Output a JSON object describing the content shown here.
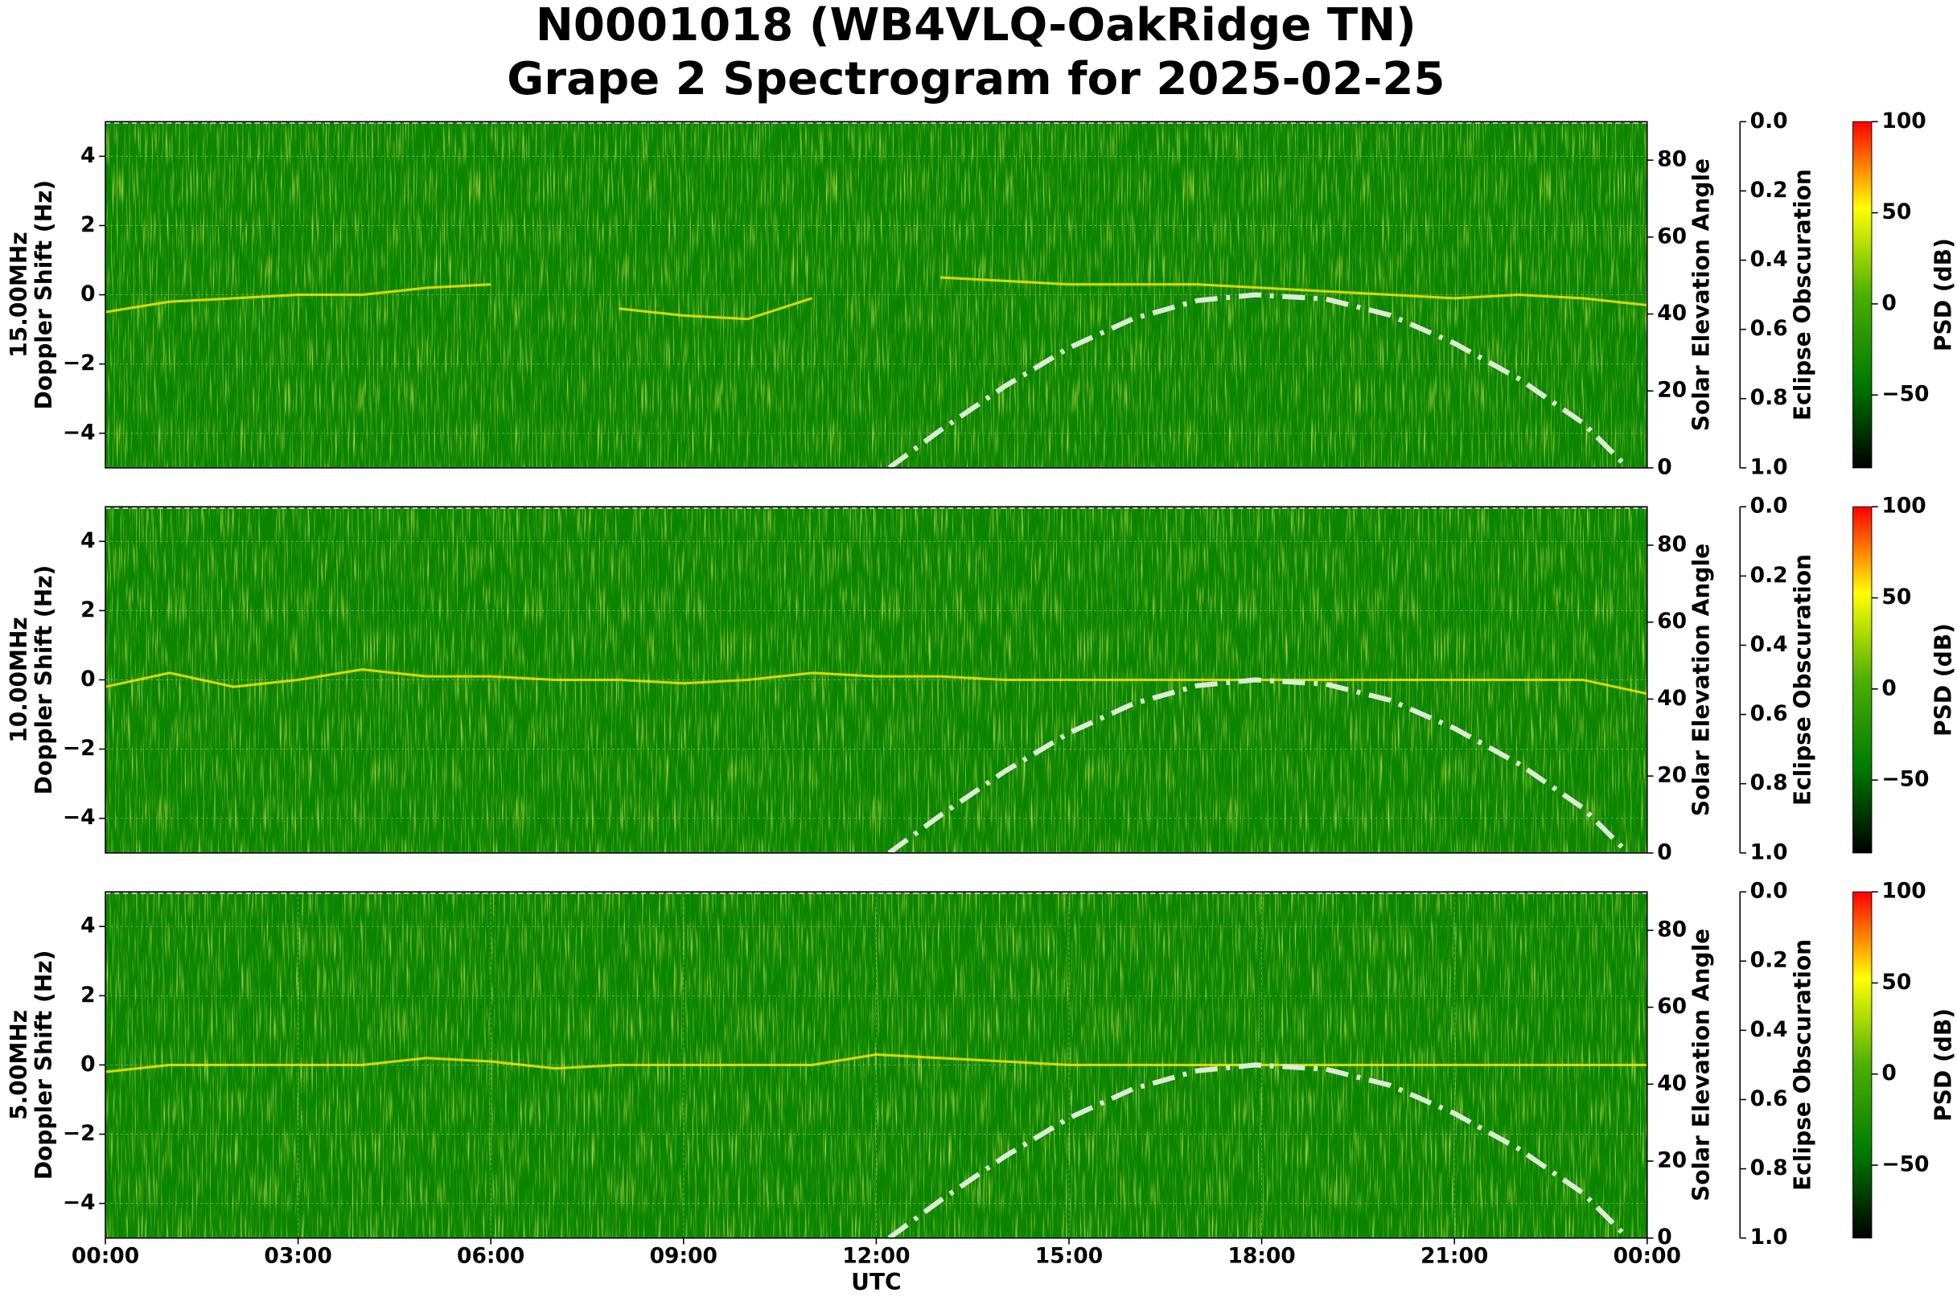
{
  "title": [
    "N0001018 (WB4VLQ-OakRidge TN)",
    "Grape 2 Spectrogram for 2025-02-25"
  ],
  "chart_data": [
    {
      "type": "spectrogram",
      "ylabel": [
        "15.00MHz",
        "Doppler Shift (Hz)"
      ],
      "xlim": [
        0,
        24
      ],
      "ylim": [
        -5,
        5
      ],
      "yticks": [
        {
          "value": -4,
          "label": "−4"
        },
        {
          "value": -2,
          "label": "−2"
        },
        0,
        2,
        4
      ],
      "grid": true,
      "background": "#0b8500",
      "cmap": [
        "#000000",
        "#007d00",
        "#4cb000",
        "#ffff00",
        "#ff0000"
      ],
      "y2label": "Solar Elevation Angle",
      "y2lim": [
        0,
        90
      ],
      "y2ticks": [
        0,
        20,
        40,
        60,
        80
      ],
      "solar": {
        "color": "#dcead6",
        "x": [
          12.2,
          13,
          14,
          15,
          16,
          17,
          17.9,
          19,
          20,
          21,
          22,
          23,
          23.7
        ],
        "values": [
          0,
          9.8,
          21.2,
          31.2,
          38.8,
          43.5,
          45,
          43.9,
          39.7,
          32.4,
          23.2,
          11.7,
          0
        ]
      },
      "y3label": "Eclipse Obscuration",
      "y3lim": [
        1,
        0
      ],
      "y3ticks": [
        {
          "value": 0,
          "label": "0.0"
        },
        {
          "value": 0.2,
          "label": "0.2"
        },
        {
          "value": 0.4,
          "label": "0.4"
        },
        {
          "value": 0.6,
          "label": "0.6"
        },
        {
          "value": 0.8,
          "label": "0.8"
        },
        {
          "value": 1,
          "label": "1.0"
        }
      ],
      "eclipse": {
        "color": "#c8c8c8",
        "x": [
          0,
          24
        ],
        "values": [
          0,
          0
        ]
      },
      "clabel": "PSD (dB)",
      "clim": [
        -90,
        100
      ],
      "cticks": [
        {
          "value": -50,
          "label": "−50"
        },
        0,
        50,
        100
      ],
      "trace_x": [
        0,
        1,
        2,
        3,
        4,
        5,
        6,
        7,
        8,
        9,
        10,
        11,
        12,
        13,
        14,
        15,
        16,
        17,
        18,
        19,
        20,
        21,
        22,
        23,
        24
      ],
      "trace": {
        "color": "#f5e600",
        "values": [
          -0.5,
          -0.2,
          -0.1,
          0,
          0,
          0.2,
          0.3,
          null,
          -0.4,
          -0.6,
          -0.7,
          -0.1,
          null,
          0.5,
          0.4,
          0.3,
          0.3,
          0.3,
          0.2,
          0.1,
          0,
          -0.1,
          0,
          -0.1,
          -0.3
        ]
      }
    },
    {
      "type": "spectrogram",
      "ylabel": [
        "10.00MHz",
        "Doppler Shift (Hz)"
      ],
      "xlim": [
        0,
        24
      ],
      "ylim": [
        -5,
        5
      ],
      "yticks": [
        {
          "value": -4,
          "label": "−4"
        },
        {
          "value": -2,
          "label": "−2"
        },
        0,
        2,
        4
      ],
      "grid": true,
      "background": "#0b8500",
      "cmap": [
        "#000000",
        "#007d00",
        "#4cb000",
        "#ffff00",
        "#ff0000"
      ],
      "y2label": "Solar Elevation Angle",
      "y2lim": [
        0,
        90
      ],
      "y2ticks": [
        0,
        20,
        40,
        60,
        80
      ],
      "solar": {
        "color": "#dcead6",
        "x": [
          12.2,
          13,
          14,
          15,
          16,
          17,
          17.9,
          19,
          20,
          21,
          22,
          23,
          23.7
        ],
        "values": [
          0,
          9.8,
          21.2,
          31.2,
          38.8,
          43.5,
          45,
          43.9,
          39.7,
          32.4,
          23.2,
          11.7,
          0
        ]
      },
      "y3label": "Eclipse Obscuration",
      "y3lim": [
        1,
        0
      ],
      "y3ticks": [
        {
          "value": 0,
          "label": "0.0"
        },
        {
          "value": 0.2,
          "label": "0.2"
        },
        {
          "value": 0.4,
          "label": "0.4"
        },
        {
          "value": 0.6,
          "label": "0.6"
        },
        {
          "value": 0.8,
          "label": "0.8"
        },
        {
          "value": 1,
          "label": "1.0"
        }
      ],
      "eclipse": {
        "color": "#c8c8c8",
        "x": [
          0,
          24
        ],
        "values": [
          0,
          0
        ]
      },
      "clabel": "PSD (dB)",
      "clim": [
        -90,
        100
      ],
      "cticks": [
        {
          "value": -50,
          "label": "−50"
        },
        0,
        50,
        100
      ],
      "trace_x": [
        0,
        1,
        2,
        3,
        4,
        5,
        6,
        7,
        8,
        9,
        10,
        11,
        12,
        13,
        14,
        15,
        16,
        17,
        18,
        19,
        20,
        21,
        22,
        23,
        24
      ],
      "trace": {
        "color": "#f5e600",
        "values": [
          -0.2,
          0.2,
          -0.2,
          0,
          0.3,
          0.1,
          0.1,
          0,
          0,
          -0.1,
          0,
          0.2,
          0.1,
          0.1,
          0,
          0,
          0,
          0,
          0,
          0,
          0,
          0,
          0,
          0,
          -0.4
        ]
      }
    },
    {
      "type": "spectrogram",
      "ylabel": [
        "5.00MHz",
        "Doppler Shift (Hz)"
      ],
      "xlim": [
        0,
        24
      ],
      "ylim": [
        -5,
        5
      ],
      "yticks": [
        {
          "value": -4,
          "label": "−4"
        },
        {
          "value": -2,
          "label": "−2"
        },
        0,
        2,
        4
      ],
      "grid": true,
      "background": "#0b8500",
      "cmap": [
        "#000000",
        "#007d00",
        "#4cb000",
        "#ffff00",
        "#ff0000"
      ],
      "xlabel": "UTC",
      "xticks": [
        {
          "value": 0,
          "label": "00:00"
        },
        {
          "value": 3,
          "label": "03:00"
        },
        {
          "value": 6,
          "label": "06:00"
        },
        {
          "value": 9,
          "label": "09:00"
        },
        {
          "value": 12,
          "label": "12:00"
        },
        {
          "value": 15,
          "label": "15:00"
        },
        {
          "value": 18,
          "label": "18:00"
        },
        {
          "value": 21,
          "label": "21:00"
        },
        {
          "value": 24,
          "label": "00:00"
        }
      ],
      "y2label": "Solar Elevation Angle",
      "y2lim": [
        0,
        90
      ],
      "y2ticks": [
        0,
        20,
        40,
        60,
        80
      ],
      "solar": {
        "color": "#dcead6",
        "x": [
          12.2,
          13,
          14,
          15,
          16,
          17,
          17.9,
          19,
          20,
          21,
          22,
          23,
          23.7
        ],
        "values": [
          0,
          9.8,
          21.2,
          31.2,
          38.8,
          43.5,
          45,
          43.9,
          39.7,
          32.4,
          23.2,
          11.7,
          0
        ]
      },
      "y3label": "Eclipse Obscuration",
      "y3lim": [
        1,
        0
      ],
      "y3ticks": [
        {
          "value": 0,
          "label": "0.0"
        },
        {
          "value": 0.2,
          "label": "0.2"
        },
        {
          "value": 0.4,
          "label": "0.4"
        },
        {
          "value": 0.6,
          "label": "0.6"
        },
        {
          "value": 0.8,
          "label": "0.8"
        },
        {
          "value": 1,
          "label": "1.0"
        }
      ],
      "eclipse": {
        "color": "#c8c8c8",
        "x": [
          0,
          24
        ],
        "values": [
          0,
          0
        ]
      },
      "clabel": "PSD (dB)",
      "clim": [
        -90,
        100
      ],
      "cticks": [
        {
          "value": -50,
          "label": "−50"
        },
        0,
        50,
        100
      ],
      "trace_x": [
        0,
        1,
        2,
        3,
        4,
        5,
        6,
        7,
        8,
        9,
        10,
        11,
        12,
        13,
        14,
        15,
        16,
        17,
        18,
        19,
        20,
        21,
        22,
        23,
        24
      ],
      "trace": {
        "color": "#f5e600",
        "values": [
          -0.2,
          0,
          0,
          0,
          0,
          0.2,
          0.1,
          -0.1,
          0,
          0,
          0,
          0,
          0.3,
          0.2,
          0.1,
          0,
          0,
          0,
          0,
          0,
          0,
          0,
          0,
          0,
          0
        ]
      }
    }
  ]
}
